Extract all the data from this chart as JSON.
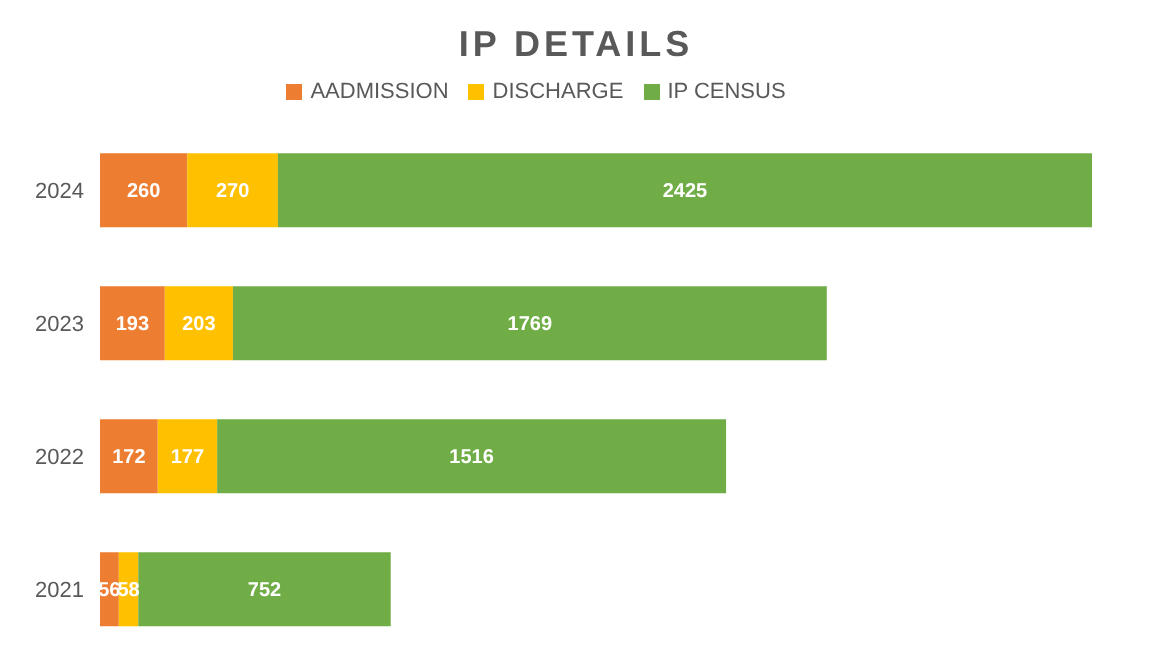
{
  "chart_data": {
    "type": "bar",
    "title": "IP DETAILS",
    "orientation": "horizontal",
    "stacked": true,
    "categories": [
      "2024",
      "2023",
      "2022",
      "2021"
    ],
    "series": [
      {
        "name": "AADMISSION",
        "color": "#ed7d31",
        "values": [
          260,
          193,
          172,
          56
        ]
      },
      {
        "name": "DISCHARGE",
        "color": "#ffc000",
        "values": [
          270,
          203,
          177,
          58
        ]
      },
      {
        "name": "IP CENSUS",
        "color": "#70ad47",
        "values": [
          2425,
          1769,
          1516,
          752
        ]
      }
    ],
    "data_labels": true,
    "legend": "top",
    "grid": false
  }
}
